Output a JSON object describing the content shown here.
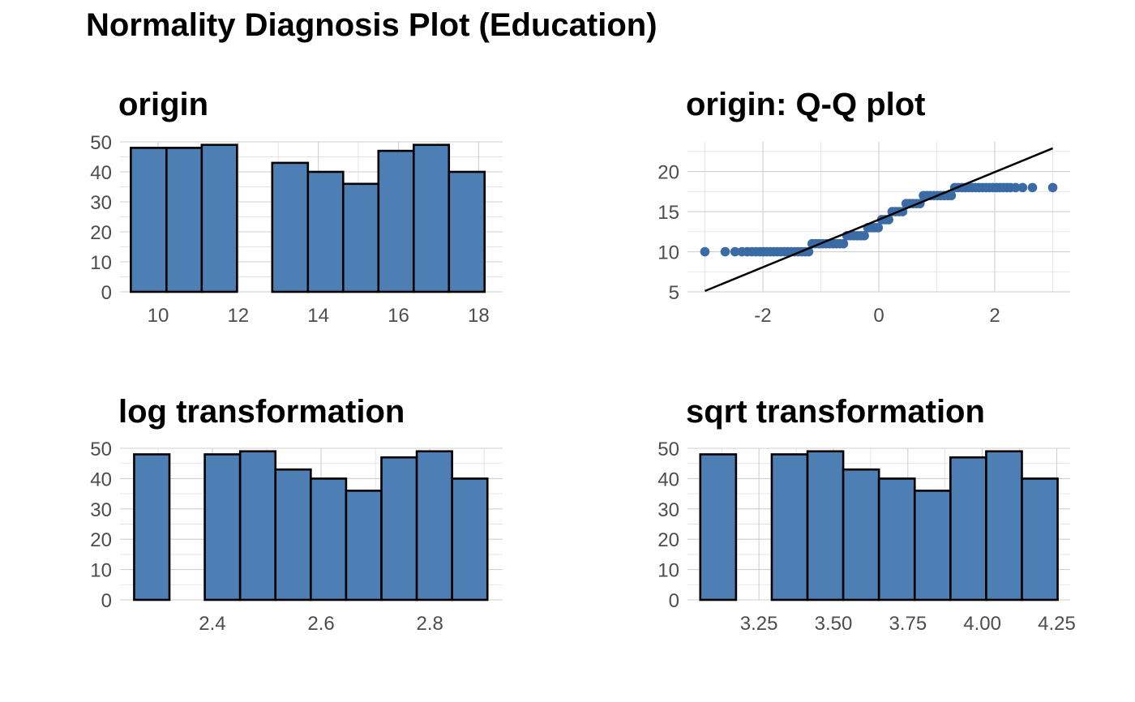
{
  "title": "Normality Diagnosis Plot (Education)",
  "colors": {
    "bar_fill": "#4e7fb4",
    "bar_outline": "#000000",
    "point": "#3b6ba5",
    "line": "#000000"
  },
  "chart_data": [
    {
      "type": "bar",
      "title": "origin",
      "bin_edges": [
        9.32,
        10.21,
        11.09,
        11.97,
        12.85,
        13.74,
        14.62,
        15.5,
        16.38,
        17.26,
        18.15
      ],
      "values": [
        48,
        48,
        49,
        0,
        43,
        40,
        36,
        47,
        49,
        40
      ],
      "xlim": [
        9.05,
        18.6
      ],
      "ylim": [
        0,
        50
      ],
      "x_ticks": [
        10,
        12,
        14,
        16,
        18
      ],
      "x_tick_labels": [
        "10",
        "12",
        "14",
        "16",
        "18"
      ],
      "y_ticks": [
        0,
        10,
        20,
        30,
        40,
        50
      ],
      "y_tick_labels": [
        "0",
        "10",
        "20",
        "30",
        "40",
        "50"
      ],
      "grid": true
    },
    {
      "type": "scatter",
      "title": "origin: Q-Q plot",
      "xlim": [
        -3.3,
        3.3
      ],
      "ylim": [
        5,
        23.7
      ],
      "x_ticks": [
        -2,
        0,
        2
      ],
      "x_tick_labels": [
        "-2",
        "0",
        "2"
      ],
      "y_ticks": [
        5,
        10,
        15,
        20
      ],
      "y_tick_labels": [
        "5",
        "10",
        "15",
        "20"
      ],
      "points": [
        {
          "x": -3.0,
          "y": 10
        },
        {
          "x": -2.65,
          "y": 10
        },
        {
          "x": -2.48,
          "y": 10
        },
        {
          "x": -2.36,
          "y": 10
        },
        {
          "x": -2.27,
          "y": 10
        },
        {
          "x": -2.19,
          "y": 10
        },
        {
          "x": -2.12,
          "y": 10
        },
        {
          "x": -2.05,
          "y": 10
        },
        {
          "x": -1.99,
          "y": 10
        },
        {
          "x": -1.93,
          "y": 10
        },
        {
          "x": -1.87,
          "y": 10
        },
        {
          "x": -1.81,
          "y": 10
        },
        {
          "x": -1.75,
          "y": 10
        },
        {
          "x": -1.69,
          "y": 10
        },
        {
          "x": -1.63,
          "y": 10
        },
        {
          "x": -1.57,
          "y": 10
        },
        {
          "x": -1.51,
          "y": 10
        },
        {
          "x": -1.45,
          "y": 10
        },
        {
          "x": -1.39,
          "y": 10
        },
        {
          "x": -1.33,
          "y": 10
        },
        {
          "x": -1.27,
          "y": 10
        },
        {
          "x": -1.21,
          "y": 10
        },
        {
          "x": -1.15,
          "y": 11
        },
        {
          "x": -1.09,
          "y": 11
        },
        {
          "x": -1.03,
          "y": 11
        },
        {
          "x": -0.97,
          "y": 11
        },
        {
          "x": -0.91,
          "y": 11
        },
        {
          "x": -0.85,
          "y": 11
        },
        {
          "x": -0.79,
          "y": 11
        },
        {
          "x": -0.73,
          "y": 11
        },
        {
          "x": -0.67,
          "y": 11
        },
        {
          "x": -0.61,
          "y": 11
        },
        {
          "x": -0.55,
          "y": 12
        },
        {
          "x": -0.49,
          "y": 12
        },
        {
          "x": -0.43,
          "y": 12
        },
        {
          "x": -0.37,
          "y": 12
        },
        {
          "x": -0.31,
          "y": 12
        },
        {
          "x": -0.25,
          "y": 12
        },
        {
          "x": -0.19,
          "y": 13
        },
        {
          "x": -0.13,
          "y": 13
        },
        {
          "x": -0.07,
          "y": 13
        },
        {
          "x": -0.01,
          "y": 13
        },
        {
          "x": 0.05,
          "y": 14
        },
        {
          "x": 0.11,
          "y": 14
        },
        {
          "x": 0.17,
          "y": 14
        },
        {
          "x": 0.23,
          "y": 15
        },
        {
          "x": 0.29,
          "y": 15
        },
        {
          "x": 0.35,
          "y": 15
        },
        {
          "x": 0.41,
          "y": 15
        },
        {
          "x": 0.47,
          "y": 16
        },
        {
          "x": 0.53,
          "y": 16
        },
        {
          "x": 0.59,
          "y": 16
        },
        {
          "x": 0.65,
          "y": 16
        },
        {
          "x": 0.71,
          "y": 16
        },
        {
          "x": 0.77,
          "y": 17
        },
        {
          "x": 0.83,
          "y": 17
        },
        {
          "x": 0.89,
          "y": 17
        },
        {
          "x": 0.95,
          "y": 17
        },
        {
          "x": 1.01,
          "y": 17
        },
        {
          "x": 1.07,
          "y": 17
        },
        {
          "x": 1.13,
          "y": 17
        },
        {
          "x": 1.19,
          "y": 17
        },
        {
          "x": 1.25,
          "y": 17
        },
        {
          "x": 1.31,
          "y": 18
        },
        {
          "x": 1.37,
          "y": 18
        },
        {
          "x": 1.43,
          "y": 18
        },
        {
          "x": 1.49,
          "y": 18
        },
        {
          "x": 1.55,
          "y": 18
        },
        {
          "x": 1.61,
          "y": 18
        },
        {
          "x": 1.67,
          "y": 18
        },
        {
          "x": 1.73,
          "y": 18
        },
        {
          "x": 1.79,
          "y": 18
        },
        {
          "x": 1.85,
          "y": 18
        },
        {
          "x": 1.91,
          "y": 18
        },
        {
          "x": 1.97,
          "y": 18
        },
        {
          "x": 2.03,
          "y": 18
        },
        {
          "x": 2.09,
          "y": 18
        },
        {
          "x": 2.15,
          "y": 18
        },
        {
          "x": 2.21,
          "y": 18
        },
        {
          "x": 2.27,
          "y": 18
        },
        {
          "x": 2.36,
          "y": 18
        },
        {
          "x": 2.48,
          "y": 18
        },
        {
          "x": 2.65,
          "y": 18
        },
        {
          "x": 3.0,
          "y": 18
        }
      ],
      "reference_line": {
        "x": [
          -3.0,
          3.0
        ],
        "y": [
          5.1,
          22.9
        ]
      },
      "grid": true
    },
    {
      "type": "bar",
      "title": "log transformation",
      "bin_edges": [
        2.256,
        2.321,
        2.386,
        2.451,
        2.516,
        2.581,
        2.646,
        2.711,
        2.776,
        2.841,
        2.906
      ],
      "values": [
        48,
        0,
        48,
        49,
        43,
        40,
        36,
        47,
        49,
        40
      ],
      "xlim": [
        2.23,
        2.934
      ],
      "ylim": [
        0,
        50
      ],
      "x_ticks": [
        2.4,
        2.6,
        2.8
      ],
      "x_tick_labels": [
        "2.4",
        "2.6",
        "2.8"
      ],
      "y_ticks": [
        0,
        10,
        20,
        30,
        40,
        50
      ],
      "y_tick_labels": [
        "0",
        "10",
        "20",
        "30",
        "40",
        "50"
      ],
      "grid": true
    },
    {
      "type": "bar",
      "title": "sqrt transformation",
      "bin_edges": [
        3.053,
        3.173,
        3.293,
        3.413,
        3.533,
        3.653,
        3.773,
        3.893,
        4.013,
        4.133,
        4.253
      ],
      "values": [
        48,
        0,
        48,
        49,
        43,
        40,
        36,
        47,
        49,
        40
      ],
      "xlim": [
        3.01,
        4.295
      ],
      "ylim": [
        0,
        50
      ],
      "x_ticks": [
        3.25,
        3.5,
        3.75,
        4.0,
        4.25
      ],
      "x_tick_labels": [
        "3.25",
        "3.50",
        "3.75",
        "4.00",
        "4.25"
      ],
      "y_ticks": [
        0,
        10,
        20,
        30,
        40,
        50
      ],
      "y_tick_labels": [
        "0",
        "10",
        "20",
        "30",
        "40",
        "50"
      ],
      "grid": true
    }
  ]
}
